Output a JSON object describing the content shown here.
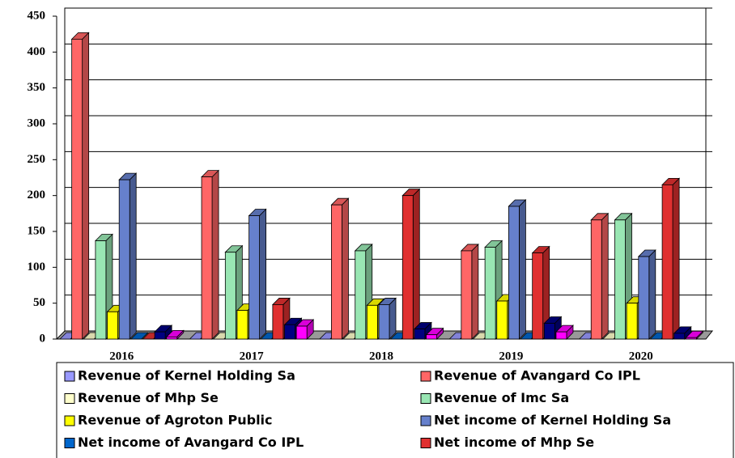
{
  "chart_data": {
    "type": "bar3d",
    "categories": [
      "2016",
      "2017",
      "2018",
      "2019",
      "2020"
    ],
    "ylim": [
      0,
      450
    ],
    "yticks": [
      0,
      50,
      100,
      150,
      200,
      250,
      300,
      350,
      400,
      450
    ],
    "grid": true,
    "series": [
      {
        "name": "Revenue of Kernel Holding Sa",
        "color": "#9999ff",
        "values": [
          0,
          0,
          0,
          0,
          0
        ]
      },
      {
        "name": "Revenue of Avangard Co IPL",
        "color": "#ff6666",
        "values": [
          418,
          226,
          187,
          123,
          166
        ]
      },
      {
        "name": "Revenue of Mhp Se",
        "color": "#ffffcc",
        "values": [
          0,
          0,
          0,
          0,
          0
        ]
      },
      {
        "name": "Revenue of Imc Sa",
        "color": "#99e6b3",
        "values": [
          137,
          121,
          123,
          128,
          166
        ]
      },
      {
        "name": "Revenue of Agroton Public",
        "color": "#ffff00",
        "values": [
          38,
          40,
          47,
          53,
          50
        ]
      },
      {
        "name": "Net income of Kernel Holding Sa",
        "color": "#6680cc",
        "values": [
          222,
          172,
          48,
          185,
          115
        ]
      },
      {
        "name": "Net income of Avangard Co IPL",
        "color": "#0066cc",
        "values": [
          0,
          0,
          0,
          0,
          0
        ]
      },
      {
        "name": "Net income of Mhp Se",
        "color": "#e03030",
        "values": [
          0,
          48,
          200,
          120,
          215
        ]
      },
      {
        "color": "#000080",
        "values": [
          10,
          20,
          14,
          22,
          8
        ]
      },
      {
        "color": "#ff00ff",
        "values": [
          3,
          18,
          6,
          10,
          2
        ]
      }
    ]
  }
}
